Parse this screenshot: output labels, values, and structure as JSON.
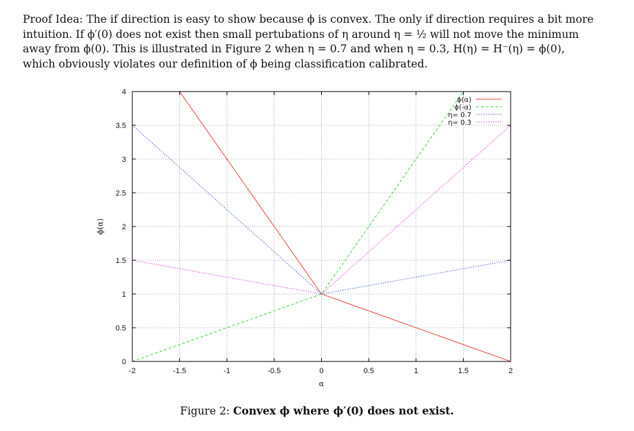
{
  "paragraph": {
    "lines": [
      "Proof Idea: The if direction is easy to show because ϕ is convex. The only if direction requires a bit more",
      "intuition. If ϕ′(0) does not exist then small pertubations of η around η = ½ will not move the minimum",
      "away from ϕ(0). This is illustrated in Figure 2 when η = 0.7 and when η = 0.3, H(η) = H⁻(η) = ϕ(0),",
      "which obviously violates our definition of ϕ being classification calibrated."
    ]
  },
  "caption": {
    "prefix": "Figure 2: ",
    "bold": "Convex ϕ where ϕ′(0) does not exist."
  },
  "chart_data": {
    "type": "line",
    "xlabel": "α",
    "ylabel": "ϕ(α)",
    "xlim": [
      -2,
      2
    ],
    "ylim": [
      0,
      4
    ],
    "xticks": [
      "-2",
      "-1.5",
      "-1",
      "-0.5",
      "0",
      "0.5",
      "1",
      "1.5",
      "2"
    ],
    "yticks": [
      "0",
      "0.5",
      "1",
      "1.5",
      "2",
      "2.5",
      "3",
      "3.5",
      "4"
    ],
    "grid": true,
    "legend_position": "top-right",
    "series": [
      {
        "name": "ϕ(α)",
        "color": "#e8453c",
        "dash": "solid",
        "x": [
          -2,
          0,
          2
        ],
        "y": [
          5,
          1,
          0
        ]
      },
      {
        "name": "ϕ(-α)",
        "color": "#39d839",
        "dash": "dashed",
        "x": [
          -2,
          0,
          2
        ],
        "y": [
          0,
          1,
          5
        ]
      },
      {
        "name": "η= 0.7",
        "color": "#3b5ee0",
        "dash": "dotted",
        "x": [
          -2,
          0,
          2
        ],
        "y": [
          3.5,
          1,
          1.5
        ]
      },
      {
        "name": "η= 0.3",
        "color": "#e33de3",
        "dash": "dotted",
        "x": [
          -2,
          0,
          2
        ],
        "y": [
          1.5,
          1,
          3.5
        ]
      }
    ]
  }
}
